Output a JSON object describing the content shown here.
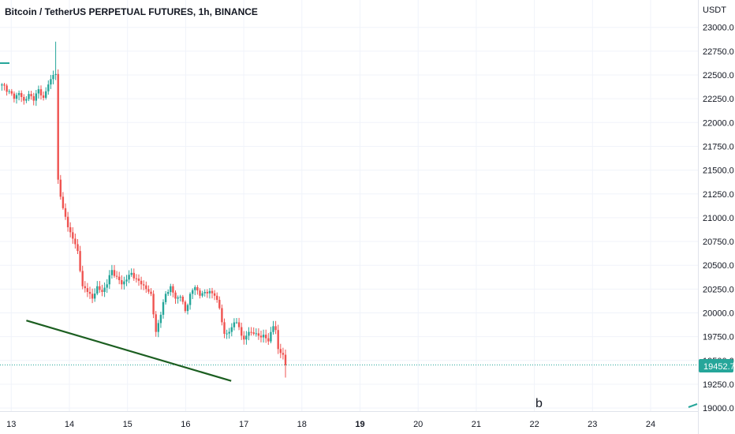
{
  "header": {
    "title": "Bitcoin / TetherUS PERPETUAL FUTURES, 1h, BINANCE",
    "currency": "USDT"
  },
  "price_tag": {
    "value": "19452.7",
    "color": "#26a69a"
  },
  "colors": {
    "up": "#26a69a",
    "down": "#ef5350",
    "trendline": "#1b5e20",
    "grid": "#f0f3fa",
    "text": "#131722"
  },
  "chart_data": {
    "type": "candlestick",
    "title": "Bitcoin / TetherUS PERPETUAL FUTURES, 1h, BINANCE",
    "ylabel": "USDT",
    "ylim": [
      18900,
      23150
    ],
    "y_ticks": [
      "23000.0",
      "22750.0",
      "22500.0",
      "22250.0",
      "22000.0",
      "21750.0",
      "21500.0",
      "21250.0",
      "21000.0",
      "20750.0",
      "20500.0",
      "20250.0",
      "20000.0",
      "19750.0",
      "19500.0",
      "19250.0",
      "19000.0"
    ],
    "x_ticks": [
      "13",
      "14",
      "15",
      "16",
      "17",
      "18",
      "19",
      "20",
      "21",
      "22",
      "23",
      "24"
    ],
    "x_ticks_bold": [
      "19"
    ],
    "last_price": 19452.7,
    "annotation": "b",
    "anchors": [
      {
        "t": 0,
        "p": 22400
      },
      {
        "t": 3,
        "p": 22330
      },
      {
        "t": 5,
        "p": 22250
      },
      {
        "t": 7,
        "p": 22310
      },
      {
        "t": 9,
        "p": 22230
      },
      {
        "t": 11,
        "p": 22300
      },
      {
        "t": 13,
        "p": 22230
      },
      {
        "t": 15,
        "p": 22350
      },
      {
        "t": 17,
        "p": 22260
      },
      {
        "t": 19,
        "p": 22400
      },
      {
        "t": 21,
        "p": 22500
      },
      {
        "t": 22,
        "p": 22510
      },
      {
        "t": 23,
        "p": 21400
      },
      {
        "t": 25,
        "p": 21100
      },
      {
        "t": 27,
        "p": 20900
      },
      {
        "t": 29,
        "p": 20780
      },
      {
        "t": 31,
        "p": 20650
      },
      {
        "t": 33,
        "p": 20280
      },
      {
        "t": 35,
        "p": 20220
      },
      {
        "t": 37,
        "p": 20150
      },
      {
        "t": 39,
        "p": 20280
      },
      {
        "t": 41,
        "p": 20220
      },
      {
        "t": 43,
        "p": 20300
      },
      {
        "t": 45,
        "p": 20450
      },
      {
        "t": 47,
        "p": 20380
      },
      {
        "t": 49,
        "p": 20300
      },
      {
        "t": 51,
        "p": 20350
      },
      {
        "t": 53,
        "p": 20420
      },
      {
        "t": 55,
        "p": 20360
      },
      {
        "t": 57,
        "p": 20300
      },
      {
        "t": 59,
        "p": 20250
      },
      {
        "t": 61,
        "p": 20200
      },
      {
        "t": 63,
        "p": 19800
      },
      {
        "t": 65,
        "p": 19980
      },
      {
        "t": 67,
        "p": 20200
      },
      {
        "t": 69,
        "p": 20280
      },
      {
        "t": 71,
        "p": 20150
      },
      {
        "t": 73,
        "p": 20170
      },
      {
        "t": 75,
        "p": 20020
      },
      {
        "t": 77,
        "p": 20200
      },
      {
        "t": 79,
        "p": 20270
      },
      {
        "t": 81,
        "p": 20180
      },
      {
        "t": 83,
        "p": 20220
      },
      {
        "t": 85,
        "p": 20230
      },
      {
        "t": 87,
        "p": 20180
      },
      {
        "t": 89,
        "p": 20050
      },
      {
        "t": 91,
        "p": 19780
      },
      {
        "t": 93,
        "p": 19800
      },
      {
        "t": 95,
        "p": 19900
      },
      {
        "t": 97,
        "p": 19850
      },
      {
        "t": 99,
        "p": 19720
      },
      {
        "t": 101,
        "p": 19800
      },
      {
        "t": 103,
        "p": 19780
      },
      {
        "t": 105,
        "p": 19760
      },
      {
        "t": 107,
        "p": 19770
      },
      {
        "t": 109,
        "p": 19700
      },
      {
        "t": 111,
        "p": 19860
      },
      {
        "t": 112,
        "p": 19820
      },
      {
        "t": 113,
        "p": 19620
      },
      {
        "t": 115,
        "p": 19560
      },
      {
        "t": 116,
        "p": 19450
      }
    ],
    "trendline": [
      {
        "t": 10,
        "p": 19920
      },
      {
        "t": 93.8,
        "p": 19285
      }
    ]
  }
}
